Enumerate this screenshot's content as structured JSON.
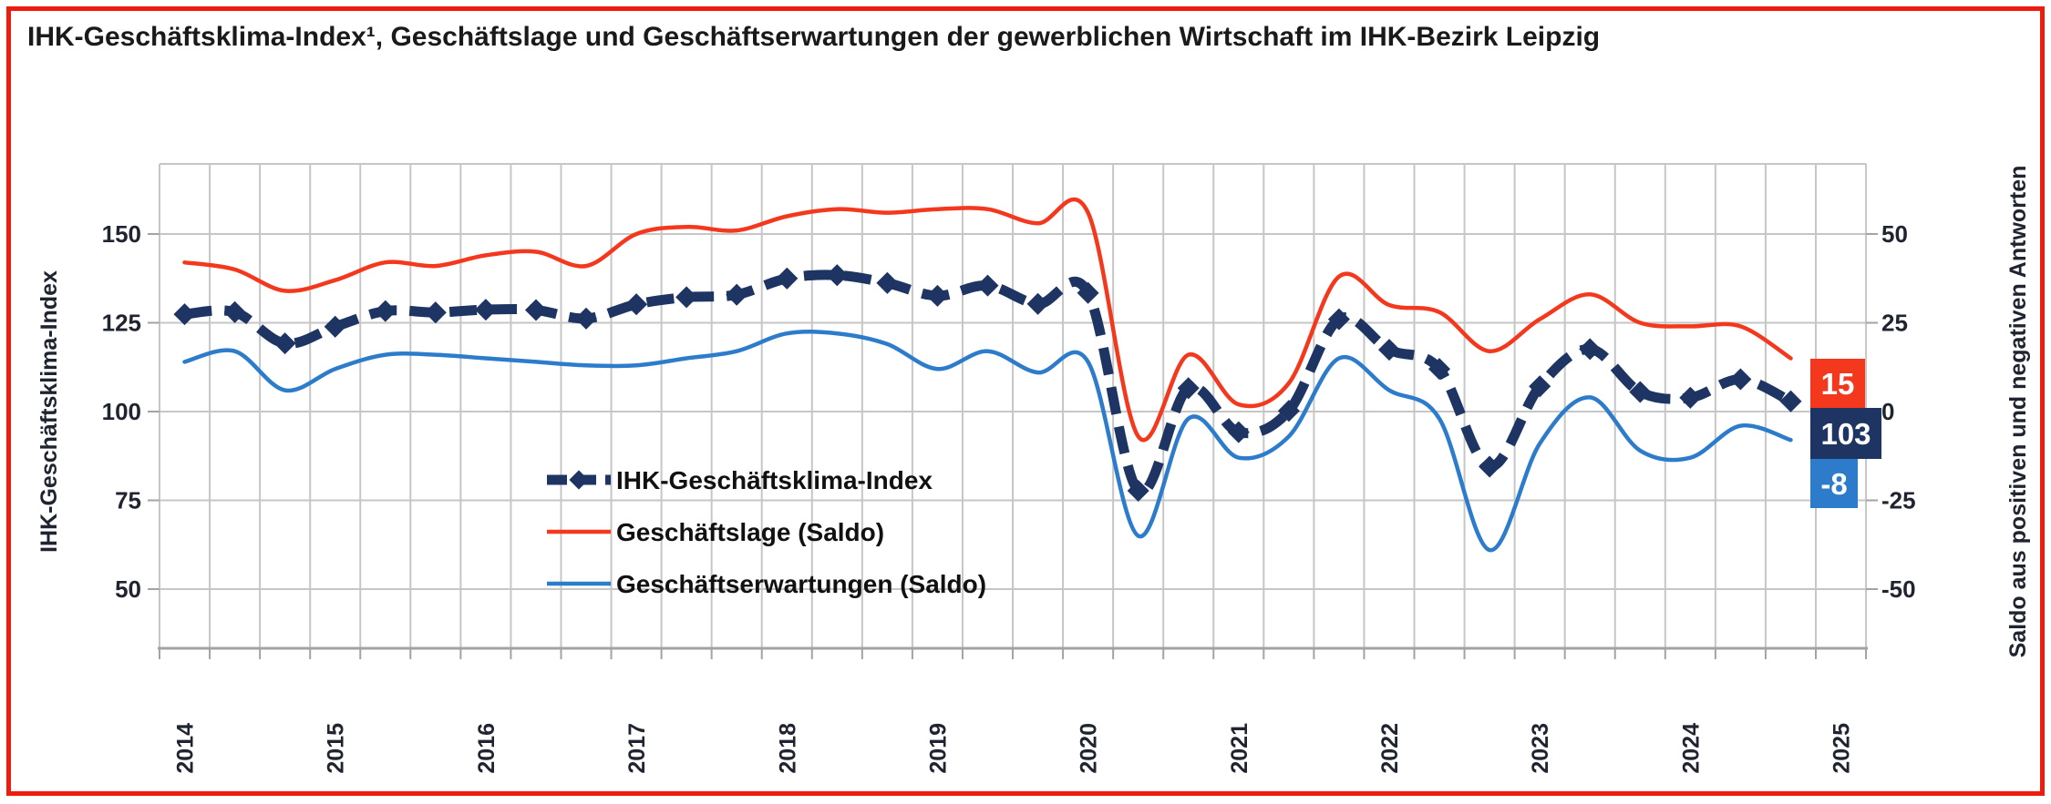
{
  "title": "IHK-Geschäftsklima-Index¹, Geschäftslage und Geschäftserwartungen der gewerblichen Wirtschaft im IHK-Bezirk Leipzig",
  "colors": {
    "border_red": "#ee1c0f",
    "klima_navy": "#1e3463",
    "lage_red": "#f4381d",
    "erwartung_blue": "#2d7ccb",
    "grid_grey": "#c6c6c6",
    "axis_grey": "#a3a3a3",
    "tick_text": "#1f2430"
  },
  "chart_data": {
    "type": "line",
    "surveys_per_year": 3,
    "year_labels": [
      "2014",
      "2015",
      "2016",
      "2017",
      "2018",
      "2019",
      "2020",
      "2021",
      "2022",
      "2023",
      "2024",
      "2025"
    ],
    "left_axis": {
      "label": "IHK-Geschäftsklima-Index",
      "ticks": [
        50,
        75,
        100,
        125,
        150
      ],
      "range_shown": [
        33,
        170
      ]
    },
    "right_axis": {
      "label": "Saldo aus positiven und negativen Antworten",
      "ticks": [
        -50,
        -25,
        0,
        25,
        50
      ],
      "range_shown": [
        -67,
        70
      ]
    },
    "grid": true,
    "legend_position": "inside-left-middle",
    "series": [
      {
        "name": "IHK-Geschäftsklima-Index",
        "axis": "left",
        "style": "thick-dashed-diamond",
        "color": "#1e3463",
        "values": [
          127.4,
          128.0,
          119.2,
          123.9,
          128.3,
          127.9,
          128.7,
          128.6,
          126.2,
          130.2,
          132.2,
          132.9,
          137.5,
          138.4,
          136.2,
          132.6,
          135.5,
          130.3,
          133.4,
          77.7,
          106.6,
          94.2,
          100.2,
          126.0,
          117.4,
          112.0,
          84.5,
          107.1,
          117.6,
          105.5,
          103.9,
          109.1,
          102.9
        ]
      },
      {
        "name": "Geschäftslage (Saldo)",
        "axis": "right",
        "style": "solid",
        "color": "#f4381d",
        "values": [
          42,
          40,
          34,
          37,
          42,
          41,
          44,
          45,
          41,
          50,
          52,
          51,
          55,
          57,
          56,
          57,
          57,
          53,
          56,
          -7,
          16,
          2,
          8,
          38,
          30,
          28,
          17,
          26,
          33,
          25,
          24,
          24,
          15
        ]
      },
      {
        "name": "Geschäftserwartungen (Saldo)",
        "axis": "right",
        "style": "solid",
        "color": "#2d7ccb",
        "values": [
          14,
          17,
          6,
          12,
          16,
          16,
          15,
          14,
          13,
          13,
          15,
          17,
          22,
          22,
          19,
          12,
          17,
          11,
          14,
          -35,
          -2,
          -13,
          -7,
          15,
          6,
          -2,
          -39,
          -9,
          4,
          -11,
          -13,
          -4,
          -8
        ]
      }
    ],
    "end_labels": [
      {
        "text": "15",
        "bg": "#f4381d",
        "fg": "#ffffff"
      },
      {
        "text": "103",
        "bg": "#1e3463",
        "fg": "#ffffff"
      },
      {
        "text": "-8",
        "bg": "#2d7ccb",
        "fg": "#ffffff"
      }
    ]
  }
}
